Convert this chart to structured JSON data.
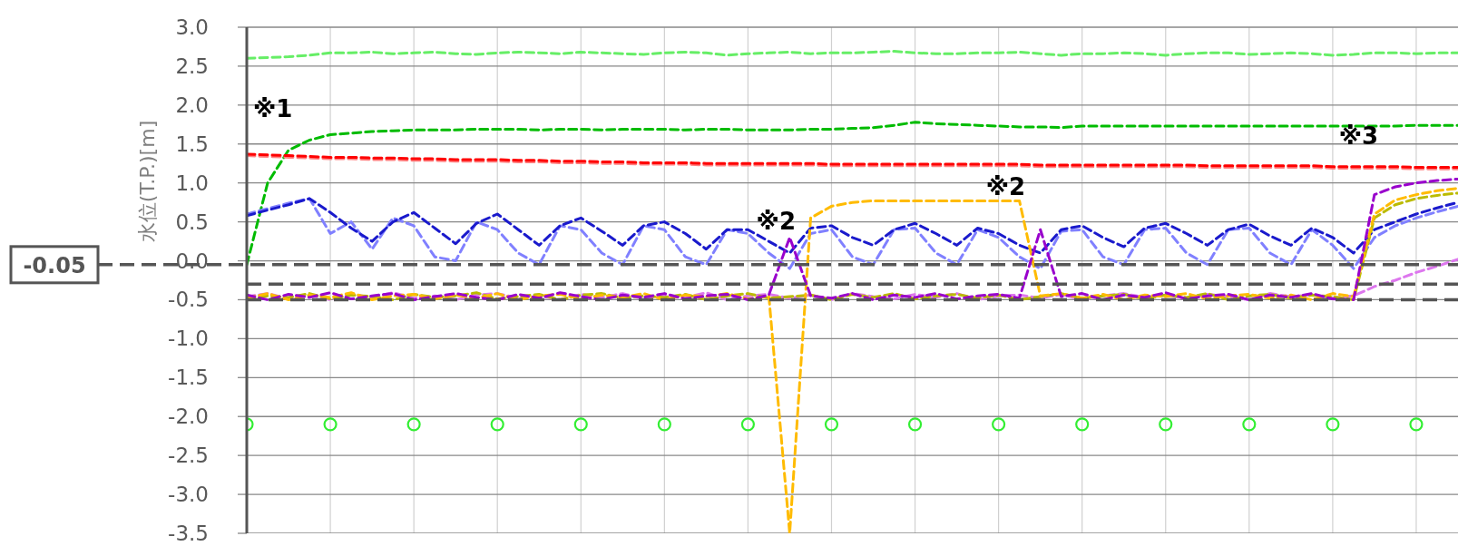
{
  "chart_data": {
    "type": "line",
    "ylabel": "水位(T.P.)[m]",
    "categories": [
      null,
      null,
      null,
      null,
      null,
      null,
      null,
      null,
      null,
      null,
      null,
      null,
      null,
      null,
      null,
      null,
      null,
      null,
      null,
      null,
      null,
      null,
      null,
      null,
      null,
      null,
      null,
      null,
      null,
      null,
      null,
      null,
      null,
      null,
      null,
      null,
      null,
      null,
      null,
      null,
      null,
      null,
      null,
      null,
      null,
      null,
      null,
      null,
      null,
      null,
      null,
      null,
      null,
      null,
      null,
      null,
      null,
      null,
      null
    ],
    "ylim": [
      -3.5,
      3.0
    ],
    "yticks": [
      {
        "value": 3.0,
        "label": "3.0"
      },
      {
        "value": 2.5,
        "label": "2.5"
      },
      {
        "value": 2.0,
        "label": "2.0"
      },
      {
        "value": 1.5,
        "label": "1.5"
      },
      {
        "value": 1.0,
        "label": "1.0"
      },
      {
        "value": 0.5,
        "label": "0.5"
      },
      {
        "value": 0.0,
        "label": "0.0"
      },
      {
        "value": -0.5,
        "label": "-0.5"
      },
      {
        "value": -1.0,
        "label": "-1.0"
      },
      {
        "value": -1.5,
        "label": "-1.5"
      },
      {
        "value": -2.0,
        "label": "-2.0"
      },
      {
        "value": -2.5,
        "label": "-2.5"
      },
      {
        "value": -3.0,
        "label": "-3.0"
      },
      {
        "value": -3.5,
        "label": "-3.5"
      }
    ],
    "grid": true,
    "tick_labels": "y",
    "line_style": "dashed",
    "series": [
      {
        "color": "#66ee66",
        "values": [
          2.6,
          2.61,
          2.62,
          2.64,
          2.67,
          2.67,
          2.68,
          2.66,
          2.67,
          2.68,
          2.66,
          2.65,
          2.67,
          2.68,
          2.67,
          2.66,
          2.68,
          2.67,
          2.66,
          2.65,
          2.67,
          2.68,
          2.67,
          2.64,
          2.66,
          2.67,
          2.68,
          2.66,
          2.67,
          2.67,
          2.68,
          2.69,
          2.67,
          2.66,
          2.66,
          2.67,
          2.67,
          2.68,
          2.66,
          2.64,
          2.66,
          2.66,
          2.67,
          2.66,
          2.64,
          2.66,
          2.67,
          2.67,
          2.65,
          2.66,
          2.67,
          2.66,
          2.64,
          2.65,
          2.67,
          2.67,
          2.66,
          2.67,
          2.67
        ]
      },
      {
        "color": "#00bb00",
        "values": [
          -0.05,
          1.0,
          1.42,
          1.55,
          1.62,
          1.64,
          1.66,
          1.67,
          1.68,
          1.68,
          1.68,
          1.69,
          1.69,
          1.69,
          1.68,
          1.69,
          1.69,
          1.68,
          1.69,
          1.69,
          1.69,
          1.68,
          1.69,
          1.69,
          1.68,
          1.68,
          1.68,
          1.69,
          1.69,
          1.7,
          1.71,
          1.74,
          1.78,
          1.76,
          1.75,
          1.74,
          1.73,
          1.72,
          1.72,
          1.71,
          1.73,
          1.73,
          1.73,
          1.73,
          1.73,
          1.73,
          1.73,
          1.73,
          1.73,
          1.73,
          1.73,
          1.73,
          1.73,
          1.73,
          1.73,
          1.73,
          1.74,
          1.74,
          1.74
        ]
      },
      {
        "color": "#ff8080",
        "values": [
          1.35,
          1.34,
          1.33,
          1.32,
          1.31,
          1.31,
          1.3,
          1.3,
          1.29,
          1.29,
          1.28,
          1.28,
          1.28,
          1.27,
          1.27,
          1.26,
          1.26,
          1.25,
          1.25,
          1.24,
          1.24,
          1.24,
          1.23,
          1.23,
          1.23,
          1.23,
          1.23,
          1.23,
          1.22,
          1.22,
          1.22,
          1.22,
          1.22,
          1.22,
          1.22,
          1.22,
          1.22,
          1.22,
          1.21,
          1.21,
          1.21,
          1.21,
          1.21,
          1.21,
          1.21,
          1.21,
          1.2,
          1.2,
          1.2,
          1.2,
          1.2,
          1.2,
          1.19,
          1.19,
          1.19,
          1.19,
          1.18,
          1.18,
          1.18
        ]
      },
      {
        "color": "#ff0000",
        "values": [
          1.37,
          1.36,
          1.35,
          1.34,
          1.33,
          1.33,
          1.32,
          1.32,
          1.31,
          1.31,
          1.3,
          1.3,
          1.3,
          1.29,
          1.29,
          1.28,
          1.28,
          1.27,
          1.27,
          1.26,
          1.26,
          1.26,
          1.25,
          1.25,
          1.25,
          1.25,
          1.25,
          1.25,
          1.24,
          1.24,
          1.24,
          1.24,
          1.24,
          1.24,
          1.24,
          1.24,
          1.24,
          1.24,
          1.23,
          1.23,
          1.23,
          1.23,
          1.23,
          1.23,
          1.23,
          1.23,
          1.22,
          1.22,
          1.22,
          1.22,
          1.22,
          1.22,
          1.21,
          1.21,
          1.21,
          1.21,
          1.2,
          1.2,
          1.2
        ]
      },
      {
        "color": "#8080ff",
        "values": [
          0.6,
          0.67,
          0.74,
          0.8,
          0.35,
          0.5,
          0.15,
          0.55,
          0.45,
          0.05,
          0.0,
          0.5,
          0.4,
          0.1,
          -0.05,
          0.45,
          0.4,
          0.1,
          -0.05,
          0.45,
          0.4,
          0.05,
          -0.05,
          0.4,
          0.35,
          0.1,
          -0.1,
          0.35,
          0.4,
          0.05,
          -0.05,
          0.4,
          0.42,
          0.1,
          -0.05,
          0.4,
          0.3,
          0.05,
          -0.1,
          0.38,
          0.4,
          0.05,
          -0.05,
          0.4,
          0.42,
          0.1,
          -0.05,
          0.4,
          0.42,
          0.1,
          -0.05,
          0.4,
          0.2,
          -0.1,
          0.3,
          0.45,
          0.55,
          0.63,
          0.7
        ]
      },
      {
        "color": "#1a1acc",
        "values": [
          0.58,
          0.65,
          0.72,
          0.8,
          0.62,
          0.42,
          0.25,
          0.5,
          0.62,
          0.42,
          0.22,
          0.48,
          0.6,
          0.4,
          0.2,
          0.45,
          0.55,
          0.38,
          0.2,
          0.45,
          0.5,
          0.35,
          0.15,
          0.4,
          0.4,
          0.25,
          0.1,
          0.42,
          0.45,
          0.3,
          0.2,
          0.4,
          0.48,
          0.35,
          0.2,
          0.42,
          0.35,
          0.2,
          0.1,
          0.4,
          0.45,
          0.3,
          0.18,
          0.42,
          0.48,
          0.35,
          0.2,
          0.4,
          0.47,
          0.32,
          0.2,
          0.42,
          0.3,
          0.1,
          0.4,
          0.5,
          0.6,
          0.68,
          0.75
        ]
      },
      {
        "color": "#dd77ee",
        "values": [
          -0.46,
          -0.42,
          -0.49,
          -0.44,
          -0.5,
          -0.43,
          -0.47,
          -0.41,
          -0.48,
          -0.45,
          -0.5,
          -0.44,
          -0.42,
          -0.48,
          -0.45,
          -0.5,
          -0.43,
          -0.47,
          -0.42,
          -0.49,
          -0.44,
          -0.47,
          -0.41,
          -0.5,
          -0.45,
          -0.43,
          -0.48,
          -0.44,
          -0.5,
          -0.42,
          -0.46,
          -0.49,
          -0.43,
          -0.47,
          -0.42,
          -0.5,
          -0.45,
          -0.44,
          -0.48,
          -0.43,
          -0.5,
          -0.45,
          -0.42,
          -0.47,
          -0.44,
          -0.49,
          -0.43,
          -0.46,
          -0.5,
          -0.42,
          -0.46,
          -0.44,
          -0.48,
          -0.45,
          -0.33,
          -0.25,
          -0.15,
          -0.07,
          0.02
        ]
      },
      {
        "color": "#bbbb00",
        "values": [
          -0.5,
          -0.45,
          -0.47,
          -0.42,
          -0.49,
          -0.44,
          -0.46,
          -0.5,
          -0.43,
          -0.47,
          -0.45,
          -0.41,
          -0.49,
          -0.46,
          -0.43,
          -0.5,
          -0.44,
          -0.42,
          -0.48,
          -0.45,
          -0.47,
          -0.43,
          -0.5,
          -0.45,
          -0.42,
          -0.48,
          -0.46,
          -0.44,
          -0.5,
          -0.43,
          -0.47,
          -0.42,
          -0.49,
          -0.45,
          -0.43,
          -0.48,
          -0.44,
          -0.5,
          -0.46,
          -0.42,
          -0.48,
          -0.45,
          -0.43,
          -0.49,
          -0.44,
          -0.47,
          -0.42,
          -0.5,
          -0.45,
          -0.43,
          -0.48,
          -0.44,
          -0.46,
          -0.5,
          0.55,
          0.72,
          0.8,
          0.84,
          0.87
        ]
      },
      {
        "color": "#ffbb00",
        "values": [
          -0.48,
          -0.42,
          -0.5,
          -0.44,
          -0.47,
          -0.41,
          -0.5,
          -0.45,
          -0.43,
          -0.49,
          -0.44,
          -0.48,
          -0.42,
          -0.5,
          -0.45,
          -0.43,
          -0.49,
          -0.44,
          -0.47,
          -0.42,
          -0.5,
          -0.44,
          -0.46,
          -0.42,
          -0.49,
          -0.45,
          -3.5,
          0.55,
          0.7,
          0.75,
          0.77,
          0.77,
          0.77,
          0.77,
          0.77,
          0.77,
          0.77,
          0.77,
          -0.45,
          -0.42,
          -0.48,
          -0.43,
          -0.5,
          -0.44,
          -0.46,
          -0.42,
          -0.49,
          -0.45,
          -0.43,
          -0.48,
          -0.44,
          -0.5,
          -0.42,
          -0.46,
          0.6,
          0.78,
          0.85,
          0.9,
          0.93
        ]
      },
      {
        "color": "#9900cc",
        "values": [
          -0.44,
          -0.5,
          -0.43,
          -0.47,
          -0.41,
          -0.49,
          -0.45,
          -0.42,
          -0.5,
          -0.46,
          -0.42,
          -0.47,
          -0.5,
          -0.43,
          -0.48,
          -0.41,
          -0.46,
          -0.5,
          -0.44,
          -0.47,
          -0.42,
          -0.49,
          -0.45,
          -0.43,
          -0.5,
          -0.44,
          0.3,
          -0.45,
          -0.48,
          -0.42,
          -0.5,
          -0.44,
          -0.47,
          -0.42,
          -0.49,
          -0.45,
          -0.43,
          -0.48,
          0.4,
          -0.46,
          -0.42,
          -0.5,
          -0.44,
          -0.47,
          -0.41,
          -0.49,
          -0.45,
          -0.43,
          -0.5,
          -0.44,
          -0.47,
          -0.42,
          -0.49,
          -0.5,
          0.85,
          0.95,
          1.0,
          1.03,
          1.05
        ]
      },
      {
        "type": "scatter",
        "marker": "circle",
        "color": "#33ee33",
        "values": [
          -2.1,
          null,
          null,
          null,
          -2.1,
          null,
          null,
          null,
          -2.1,
          null,
          null,
          null,
          -2.1,
          null,
          null,
          null,
          -2.1,
          null,
          null,
          null,
          -2.1,
          null,
          null,
          null,
          -2.1,
          null,
          null,
          null,
          -2.1,
          null,
          null,
          null,
          -2.1,
          null,
          null,
          null,
          -2.1,
          null,
          null,
          null,
          -2.1,
          null,
          null,
          null,
          -2.1,
          null,
          null,
          null,
          -2.1,
          null,
          null,
          null,
          -2.1,
          null,
          null,
          null,
          -2.1,
          null,
          null
        ]
      }
    ],
    "ref_lines": [
      {
        "axis": "y",
        "value": -0.05,
        "label": "-0.05",
        "color": "#555555",
        "line_style": "dashed"
      },
      {
        "axis": "y",
        "value": -0.3,
        "color": "#555555",
        "line_style": "dashed"
      },
      {
        "axis": "y",
        "value": -0.5,
        "color": "#555555",
        "line_style": "dashed"
      }
    ],
    "annotations": [
      "※1",
      "※2",
      "※2",
      "※3"
    ]
  }
}
